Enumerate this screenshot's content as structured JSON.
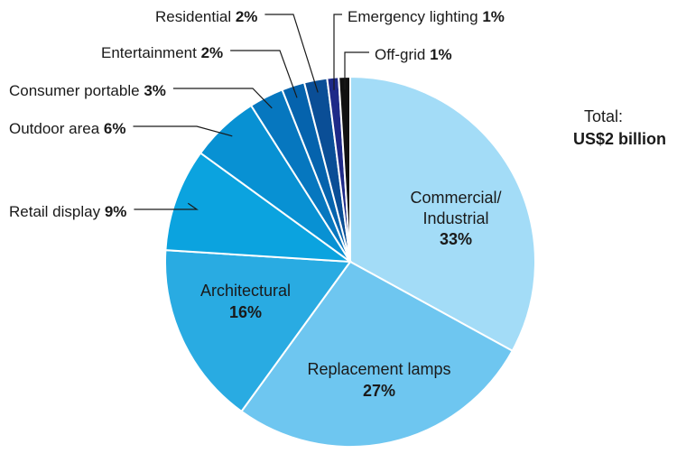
{
  "chart_data": {
    "type": "pie",
    "total": {
      "label": "Total:",
      "value": "US$2 billion"
    },
    "slices": [
      {
        "name": "Commercial/ Industrial",
        "lines": [
          "Commercial/",
          "Industrial"
        ],
        "value": 33,
        "value_label": "33%",
        "color": "#a3dcf7",
        "label_mode": "inside"
      },
      {
        "name": "Replacement lamps",
        "lines": [
          "Replacement lamps"
        ],
        "value": 27,
        "value_label": "27%",
        "color": "#6ec6f0",
        "label_mode": "inside"
      },
      {
        "name": "Architectural",
        "lines": [
          "Architectural"
        ],
        "value": 16,
        "value_label": "16%",
        "color": "#29abe2",
        "label_mode": "inside"
      },
      {
        "name": "Retail display",
        "lines": [
          "Retail display"
        ],
        "value": 9,
        "value_label": "9%",
        "color": "#0ba3df",
        "label_mode": "outside"
      },
      {
        "name": "Outdoor area",
        "lines": [
          "Outdoor area"
        ],
        "value": 6,
        "value_label": "6%",
        "color": "#0891d3",
        "label_mode": "outside"
      },
      {
        "name": "Consumer portable",
        "lines": [
          "Consumer portable"
        ],
        "value": 3,
        "value_label": "3%",
        "color": "#0677bf",
        "label_mode": "outside"
      },
      {
        "name": "Entertainment",
        "lines": [
          "Entertainment"
        ],
        "value": 2,
        "value_label": "2%",
        "color": "#0563ad",
        "label_mode": "outside"
      },
      {
        "name": "Residential",
        "lines": [
          "Residential"
        ],
        "value": 2,
        "value_label": "2%",
        "color": "#0a4e96",
        "label_mode": "outside"
      },
      {
        "name": "Emergency lighting",
        "lines": [
          "Emergency lighting"
        ],
        "value": 1,
        "value_label": "1%",
        "color": "#1e2a88",
        "label_mode": "outside"
      },
      {
        "name": "Off-grid",
        "lines": [
          "Off-grid"
        ],
        "value": 1,
        "value_label": "1%",
        "color": "#111111",
        "label_mode": "outside"
      }
    ]
  }
}
